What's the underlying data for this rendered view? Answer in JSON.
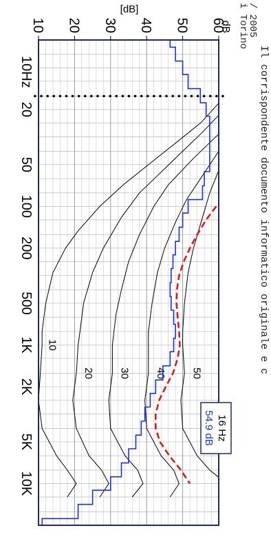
{
  "header": {
    "unit_label": "[dB]",
    "stamp_lines": [
      "/ 2005",
      "i Torino",
      "Il corrispondente documento informatico originale e c"
    ]
  },
  "cursor_box": {
    "freq_label": "16 Hz",
    "level_label": "54.9 dB"
  },
  "chart_data": {
    "type": "line",
    "title": "",
    "scale": "log-frequency",
    "y_axis": {
      "label": "[dB]",
      "range": [
        10,
        60
      ],
      "ticks": [
        10,
        20,
        30,
        40,
        50,
        60
      ],
      "unit_label": "dB"
    },
    "x_axis": {
      "range_hz": [
        6.3,
        20000
      ],
      "ticks": [
        {
          "hz": 10,
          "label": "10Hz"
        },
        {
          "hz": 20,
          "label": "20"
        },
        {
          "hz": 50,
          "label": "50"
        },
        {
          "hz": 100,
          "label": "100"
        },
        {
          "hz": 200,
          "label": "200"
        },
        {
          "hz": 500,
          "label": "500"
        },
        {
          "hz": 1000,
          "label": "1K"
        },
        {
          "hz": 2000,
          "label": "2K"
        },
        {
          "hz": 5000,
          "label": "5K"
        },
        {
          "hz": 10000,
          "label": "10K"
        }
      ]
    },
    "grid": true,
    "cursor_hz": 16,
    "series": [
      {
        "kind": "step",
        "color": "#1a2fe0",
        "points": [
          [
            6.3,
            46.5
          ],
          [
            8,
            48
          ],
          [
            10,
            50
          ],
          [
            12.5,
            51.5
          ],
          [
            16,
            54.9
          ],
          [
            20,
            56.5
          ],
          [
            25,
            57.5
          ],
          [
            31.5,
            57.5
          ],
          [
            40,
            57.5
          ],
          [
            50,
            57.5
          ],
          [
            63,
            56
          ],
          [
            80,
            55.5
          ],
          [
            100,
            51.5
          ],
          [
            125,
            50
          ],
          [
            160,
            49
          ],
          [
            200,
            48
          ],
          [
            250,
            47.3
          ],
          [
            315,
            46.8
          ],
          [
            400,
            46.5
          ],
          [
            500,
            46.8
          ],
          [
            630,
            47.5
          ],
          [
            800,
            48
          ],
          [
            1000,
            47.5
          ],
          [
            1250,
            46.5
          ],
          [
            1600,
            44.5
          ],
          [
            2000,
            42.5
          ],
          [
            2500,
            41
          ],
          [
            3150,
            39.5
          ],
          [
            4000,
            38.5
          ],
          [
            5000,
            37
          ],
          [
            6300,
            35
          ],
          [
            8000,
            33
          ],
          [
            10000,
            30
          ],
          [
            12500,
            25
          ],
          [
            16000,
            21
          ],
          [
            20000,
            11
          ]
        ]
      },
      {
        "kind": "dashed",
        "color": "#e01818",
        "points": [
          [
            100,
            59.3
          ],
          [
            125,
            56.5
          ],
          [
            160,
            54
          ],
          [
            200,
            52
          ],
          [
            250,
            50.3
          ],
          [
            315,
            49
          ],
          [
            400,
            48.4
          ],
          [
            500,
            48.3
          ],
          [
            630,
            48.6
          ],
          [
            800,
            49
          ],
          [
            1000,
            49.2
          ],
          [
            1250,
            48.6
          ],
          [
            1600,
            47.3
          ],
          [
            2000,
            45.3
          ],
          [
            2500,
            43.5
          ],
          [
            3150,
            42.5
          ],
          [
            4000,
            42.5
          ],
          [
            5000,
            43.7
          ],
          [
            6300,
            46.3
          ],
          [
            8000,
            49.5
          ],
          [
            10000,
            52
          ]
        ]
      }
    ],
    "contours": [
      {
        "label": "10",
        "color": "#000000",
        "points": [
          [
            18,
            60
          ],
          [
            25,
            55
          ],
          [
            35,
            48
          ],
          [
            50,
            40.5
          ],
          [
            70,
            33.5
          ],
          [
            100,
            27
          ],
          [
            150,
            21
          ],
          [
            200,
            17.5
          ],
          [
            300,
            14
          ],
          [
            500,
            12
          ],
          [
            800,
            11
          ],
          [
            1000,
            11
          ],
          [
            1600,
            10.5
          ],
          [
            2500,
            10
          ],
          [
            4000,
            11
          ],
          [
            6300,
            15
          ],
          [
            8000,
            18
          ],
          [
            10000,
            20.5
          ],
          [
            12500,
            18
          ]
        ]
      },
      {
        "label": "20",
        "color": "#000000",
        "points": [
          [
            22,
            60
          ],
          [
            30,
            55
          ],
          [
            40,
            50
          ],
          [
            60,
            43
          ],
          [
            80,
            38
          ],
          [
            120,
            33
          ],
          [
            200,
            28
          ],
          [
            300,
            25
          ],
          [
            500,
            22.5
          ],
          [
            800,
            21.5
          ],
          [
            1000,
            21
          ],
          [
            1600,
            20.5
          ],
          [
            2500,
            19.5
          ],
          [
            4000,
            20.5
          ],
          [
            6300,
            24
          ],
          [
            8000,
            27.5
          ],
          [
            10000,
            29.5
          ],
          [
            12500,
            27
          ]
        ]
      },
      {
        "label": "30",
        "color": "#000000",
        "points": [
          [
            30,
            60
          ],
          [
            45,
            53
          ],
          [
            70,
            46
          ],
          [
            100,
            42
          ],
          [
            160,
            38
          ],
          [
            250,
            35
          ],
          [
            400,
            33
          ],
          [
            600,
            31.5
          ],
          [
            1000,
            30.5
          ],
          [
            1600,
            30.5
          ],
          [
            2500,
            29.5
          ],
          [
            4000,
            30
          ],
          [
            6300,
            34
          ],
          [
            8000,
            37.5
          ],
          [
            10000,
            39
          ],
          [
            12500,
            36
          ]
        ]
      },
      {
        "label": "40",
        "color": "#000000",
        "points": [
          [
            40,
            60
          ],
          [
            60,
            55.5
          ],
          [
            90,
            51
          ],
          [
            130,
            48
          ],
          [
            200,
            45
          ],
          [
            300,
            43
          ],
          [
            500,
            41.5
          ],
          [
            800,
            40.5
          ],
          [
            1000,
            40.5
          ],
          [
            1600,
            40.5
          ],
          [
            2500,
            39.5
          ],
          [
            4000,
            40
          ],
          [
            6300,
            44
          ],
          [
            8000,
            47.5
          ],
          [
            10000,
            49
          ],
          [
            12500,
            46.5
          ]
        ]
      },
      {
        "label": "50",
        "color": "#000000",
        "points": [
          [
            55,
            60
          ],
          [
            80,
            57.5
          ],
          [
            120,
            55.5
          ],
          [
            200,
            53
          ],
          [
            300,
            51.5
          ],
          [
            500,
            50.5
          ],
          [
            800,
            50
          ],
          [
            1000,
            50
          ],
          [
            1600,
            50.5
          ],
          [
            2500,
            49.5
          ],
          [
            4000,
            50
          ],
          [
            6300,
            54
          ],
          [
            8000,
            57.5
          ],
          [
            9000,
            60
          ]
        ]
      }
    ],
    "contour_labels": [
      {
        "text": "10",
        "hz": 1000,
        "db": 13
      },
      {
        "text": "20",
        "hz": 1600,
        "db": 23
      },
      {
        "text": "30",
        "hz": 1600,
        "db": 33
      },
      {
        "text": "40",
        "hz": 1600,
        "db": 43
      },
      {
        "text": "50",
        "hz": 1600,
        "db": 53
      }
    ]
  }
}
